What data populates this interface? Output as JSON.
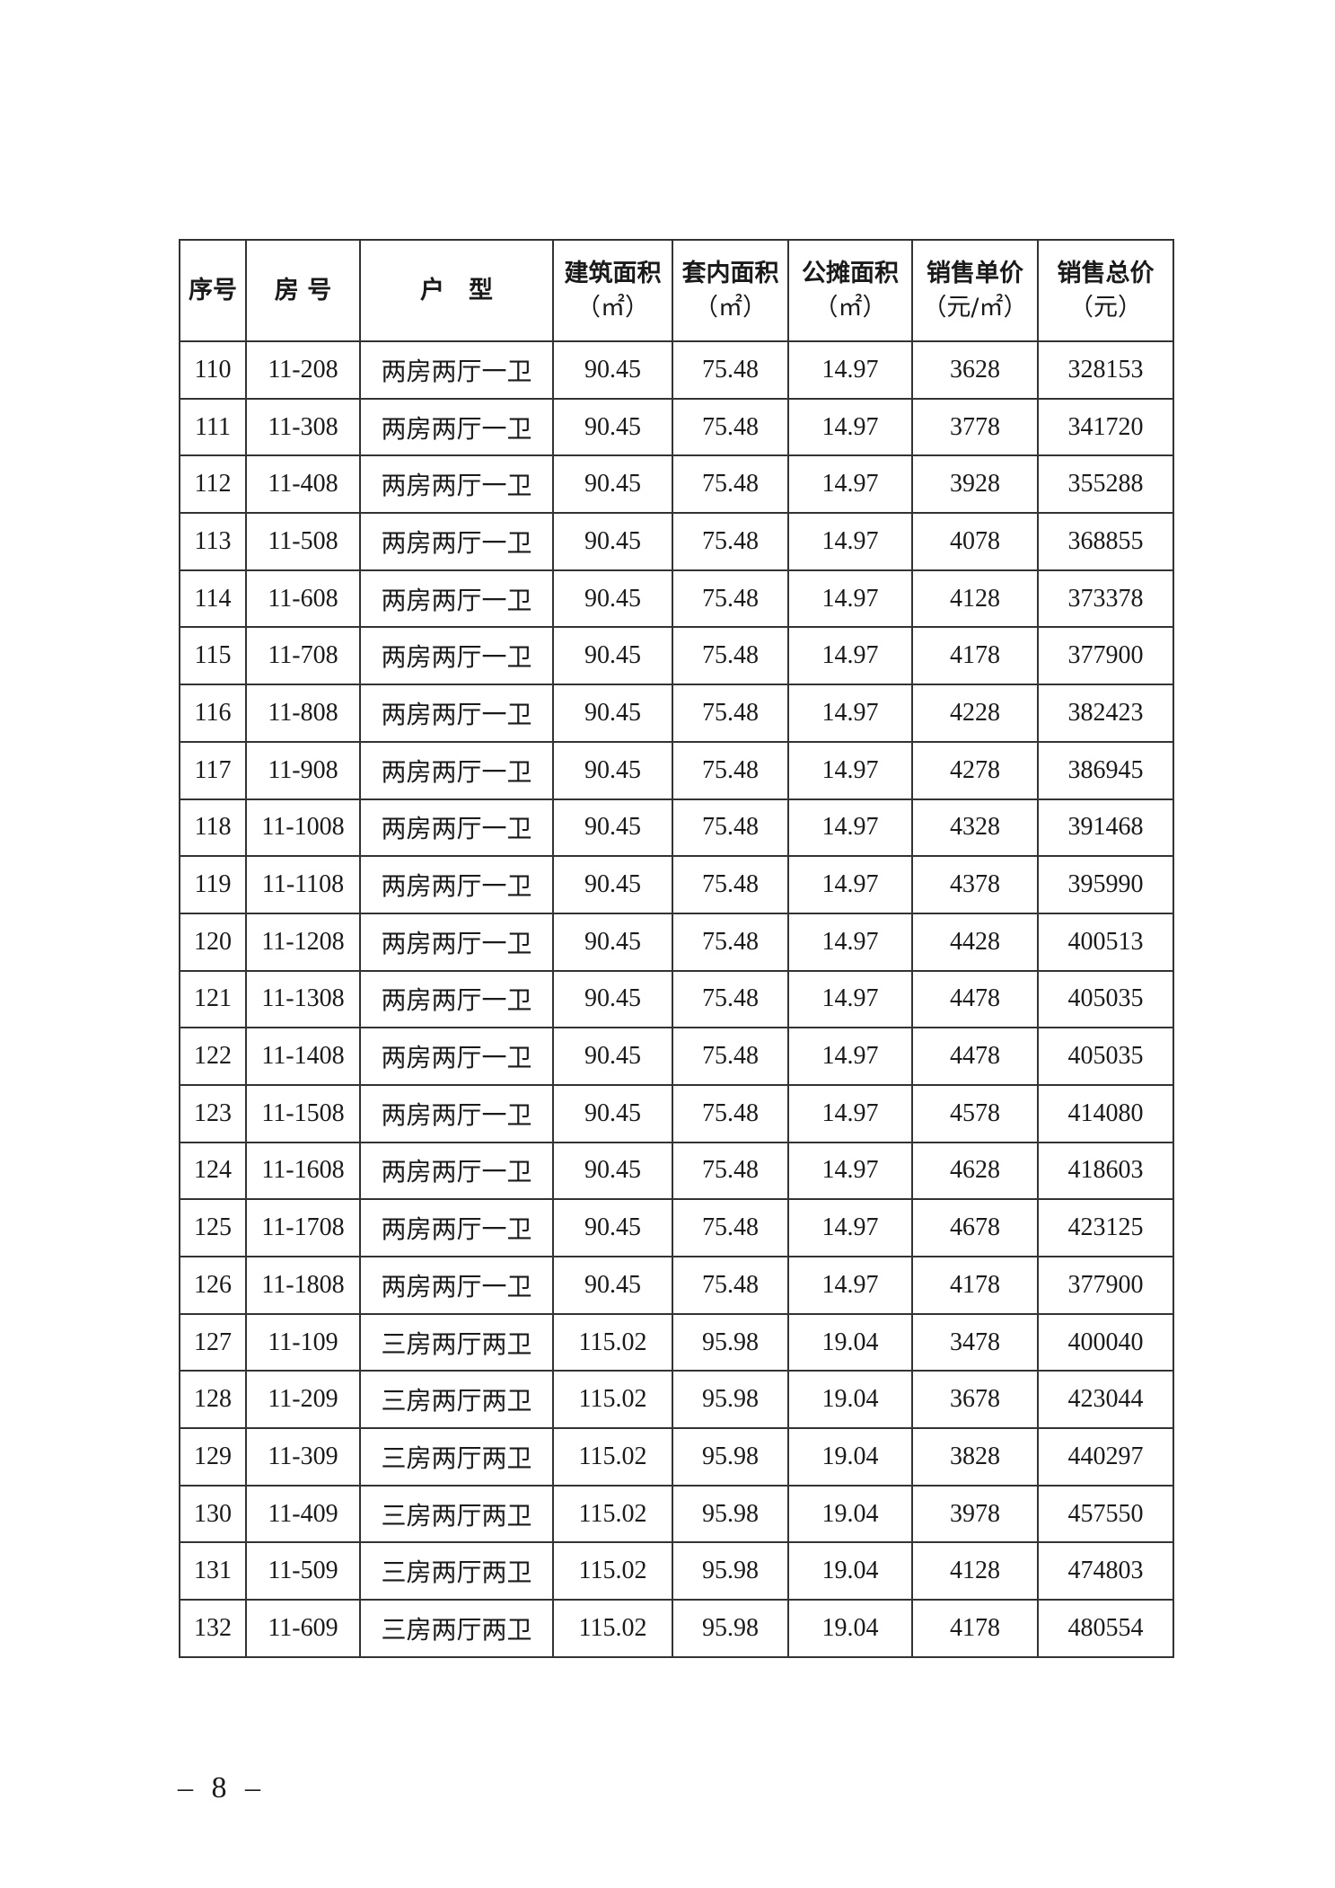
{
  "table": {
    "headers": [
      {
        "line1": "序号",
        "line2": ""
      },
      {
        "line1": "房 号",
        "line2": ""
      },
      {
        "line1": "户　型",
        "line2": ""
      },
      {
        "line1": "建筑面积",
        "line2": "（㎡）"
      },
      {
        "line1": "套内面积",
        "line2": "（㎡）"
      },
      {
        "line1": "公摊面积",
        "line2": "（㎡）"
      },
      {
        "line1": "销售单价",
        "line2": "（元/㎡）"
      },
      {
        "line1": "销售总价",
        "line2": "（元）"
      }
    ],
    "rows": [
      [
        "110",
        "11-208",
        "两房两厅一卫",
        "90.45",
        "75.48",
        "14.97",
        "3628",
        "328153"
      ],
      [
        "111",
        "11-308",
        "两房两厅一卫",
        "90.45",
        "75.48",
        "14.97",
        "3778",
        "341720"
      ],
      [
        "112",
        "11-408",
        "两房两厅一卫",
        "90.45",
        "75.48",
        "14.97",
        "3928",
        "355288"
      ],
      [
        "113",
        "11-508",
        "两房两厅一卫",
        "90.45",
        "75.48",
        "14.97",
        "4078",
        "368855"
      ],
      [
        "114",
        "11-608",
        "两房两厅一卫",
        "90.45",
        "75.48",
        "14.97",
        "4128",
        "373378"
      ],
      [
        "115",
        "11-708",
        "两房两厅一卫",
        "90.45",
        "75.48",
        "14.97",
        "4178",
        "377900"
      ],
      [
        "116",
        "11-808",
        "两房两厅一卫",
        "90.45",
        "75.48",
        "14.97",
        "4228",
        "382423"
      ],
      [
        "117",
        "11-908",
        "两房两厅一卫",
        "90.45",
        "75.48",
        "14.97",
        "4278",
        "386945"
      ],
      [
        "118",
        "11-1008",
        "两房两厅一卫",
        "90.45",
        "75.48",
        "14.97",
        "4328",
        "391468"
      ],
      [
        "119",
        "11-1108",
        "两房两厅一卫",
        "90.45",
        "75.48",
        "14.97",
        "4378",
        "395990"
      ],
      [
        "120",
        "11-1208",
        "两房两厅一卫",
        "90.45",
        "75.48",
        "14.97",
        "4428",
        "400513"
      ],
      [
        "121",
        "11-1308",
        "两房两厅一卫",
        "90.45",
        "75.48",
        "14.97",
        "4478",
        "405035"
      ],
      [
        "122",
        "11-1408",
        "两房两厅一卫",
        "90.45",
        "75.48",
        "14.97",
        "4478",
        "405035"
      ],
      [
        "123",
        "11-1508",
        "两房两厅一卫",
        "90.45",
        "75.48",
        "14.97",
        "4578",
        "414080"
      ],
      [
        "124",
        "11-1608",
        "两房两厅一卫",
        "90.45",
        "75.48",
        "14.97",
        "4628",
        "418603"
      ],
      [
        "125",
        "11-1708",
        "两房两厅一卫",
        "90.45",
        "75.48",
        "14.97",
        "4678",
        "423125"
      ],
      [
        "126",
        "11-1808",
        "两房两厅一卫",
        "90.45",
        "75.48",
        "14.97",
        "4178",
        "377900"
      ],
      [
        "127",
        "11-109",
        "三房两厅两卫",
        "115.02",
        "95.98",
        "19.04",
        "3478",
        "400040"
      ],
      [
        "128",
        "11-209",
        "三房两厅两卫",
        "115.02",
        "95.98",
        "19.04",
        "3678",
        "423044"
      ],
      [
        "129",
        "11-309",
        "三房两厅两卫",
        "115.02",
        "95.98",
        "19.04",
        "3828",
        "440297"
      ],
      [
        "130",
        "11-409",
        "三房两厅两卫",
        "115.02",
        "95.98",
        "19.04",
        "3978",
        "457550"
      ],
      [
        "131",
        "11-509",
        "三房两厅两卫",
        "115.02",
        "95.98",
        "19.04",
        "4128",
        "474803"
      ],
      [
        "132",
        "11-609",
        "三房两厅两卫",
        "115.02",
        "95.98",
        "19.04",
        "4178",
        "480554"
      ]
    ]
  },
  "page_number": "– 8 –"
}
